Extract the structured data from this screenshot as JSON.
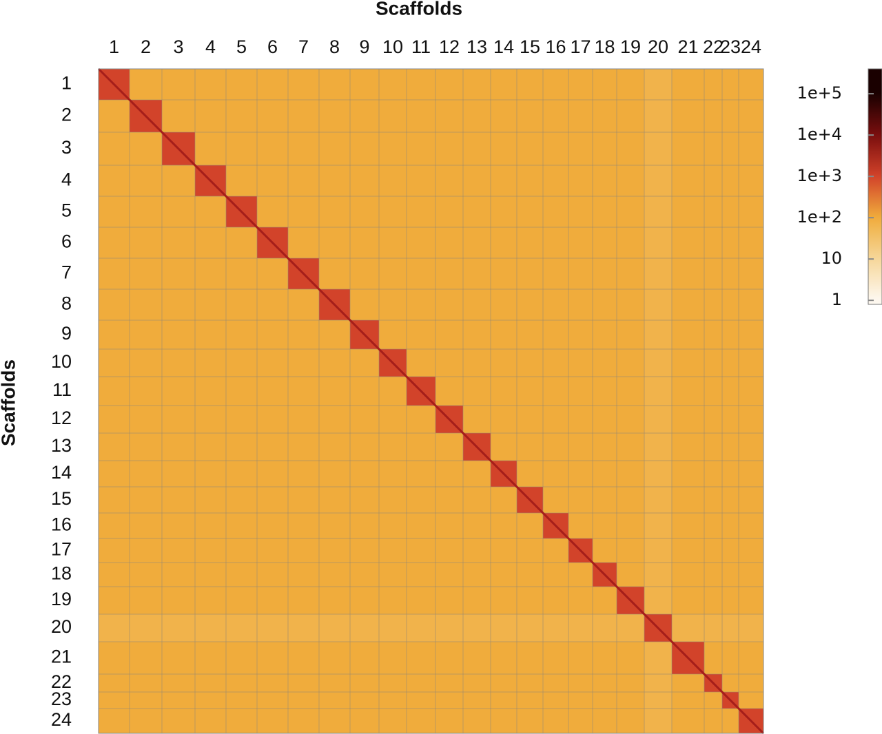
{
  "chart_data": {
    "type": "heatmap",
    "x_label": "Scaffolds",
    "y_label": "Scaffolds",
    "categories": [
      "1",
      "2",
      "3",
      "4",
      "5",
      "6",
      "7",
      "8",
      "9",
      "10",
      "11",
      "12",
      "13",
      "14",
      "15",
      "16",
      "17",
      "18",
      "19",
      "20",
      "21",
      "22",
      "23",
      "24"
    ],
    "lengths": [
      45,
      47,
      48,
      45,
      45,
      45,
      45,
      45,
      42,
      40,
      42,
      40,
      40,
      38,
      38,
      37,
      35,
      35,
      40,
      40,
      47,
      26,
      24,
      36
    ],
    "values": [
      [
        1000,
        100,
        100,
        100,
        100,
        100,
        100,
        100,
        100,
        100,
        100,
        100,
        100,
        100,
        100,
        100,
        100,
        100,
        100,
        70,
        100,
        100,
        100,
        100
      ],
      [
        100,
        1000,
        100,
        100,
        100,
        100,
        100,
        100,
        100,
        100,
        100,
        100,
        100,
        100,
        100,
        100,
        100,
        100,
        100,
        70,
        100,
        100,
        100,
        100
      ],
      [
        100,
        100,
        1000,
        100,
        100,
        100,
        100,
        100,
        100,
        100,
        100,
        100,
        100,
        100,
        100,
        100,
        100,
        100,
        100,
        70,
        100,
        100,
        100,
        100
      ],
      [
        100,
        100,
        100,
        1000,
        100,
        100,
        100,
        100,
        100,
        100,
        100,
        100,
        100,
        100,
        100,
        100,
        100,
        100,
        100,
        70,
        100,
        100,
        100,
        100
      ],
      [
        100,
        100,
        100,
        100,
        1000,
        100,
        100,
        100,
        100,
        100,
        100,
        100,
        100,
        100,
        100,
        100,
        100,
        100,
        100,
        70,
        100,
        100,
        100,
        100
      ],
      [
        100,
        100,
        100,
        100,
        100,
        1000,
        100,
        100,
        100,
        100,
        100,
        100,
        100,
        100,
        100,
        100,
        100,
        100,
        100,
        70,
        100,
        100,
        100,
        100
      ],
      [
        100,
        100,
        100,
        100,
        100,
        100,
        1000,
        100,
        100,
        100,
        100,
        100,
        100,
        100,
        100,
        100,
        100,
        100,
        100,
        70,
        100,
        100,
        100,
        100
      ],
      [
        100,
        100,
        100,
        100,
        100,
        100,
        100,
        1000,
        100,
        100,
        100,
        100,
        100,
        100,
        100,
        100,
        100,
        100,
        100,
        70,
        100,
        100,
        100,
        100
      ],
      [
        100,
        100,
        100,
        100,
        100,
        100,
        100,
        100,
        1000,
        100,
        100,
        100,
        100,
        100,
        100,
        100,
        100,
        100,
        100,
        70,
        100,
        100,
        100,
        100
      ],
      [
        100,
        100,
        100,
        100,
        100,
        100,
        100,
        100,
        100,
        1000,
        100,
        100,
        100,
        100,
        100,
        100,
        100,
        100,
        100,
        70,
        100,
        100,
        100,
        100
      ],
      [
        100,
        100,
        100,
        100,
        100,
        100,
        100,
        100,
        100,
        100,
        1000,
        100,
        100,
        100,
        100,
        100,
        100,
        100,
        100,
        70,
        100,
        100,
        100,
        100
      ],
      [
        100,
        100,
        100,
        100,
        100,
        100,
        100,
        100,
        100,
        100,
        100,
        1000,
        100,
        100,
        100,
        100,
        100,
        100,
        100,
        70,
        100,
        100,
        100,
        100
      ],
      [
        100,
        100,
        100,
        100,
        100,
        100,
        100,
        100,
        100,
        100,
        100,
        100,
        1000,
        100,
        100,
        100,
        100,
        100,
        100,
        70,
        100,
        100,
        100,
        100
      ],
      [
        100,
        100,
        100,
        100,
        100,
        100,
        100,
        100,
        100,
        100,
        100,
        100,
        100,
        1000,
        100,
        100,
        100,
        100,
        100,
        70,
        100,
        100,
        100,
        100
      ],
      [
        100,
        100,
        100,
        100,
        100,
        100,
        100,
        100,
        100,
        100,
        100,
        100,
        100,
        100,
        1000,
        100,
        100,
        100,
        100,
        70,
        100,
        100,
        100,
        100
      ],
      [
        100,
        100,
        100,
        100,
        100,
        100,
        100,
        100,
        100,
        100,
        100,
        100,
        100,
        100,
        100,
        1000,
        100,
        100,
        100,
        70,
        100,
        100,
        100,
        100
      ],
      [
        100,
        100,
        100,
        100,
        100,
        100,
        100,
        100,
        100,
        100,
        100,
        100,
        100,
        100,
        100,
        100,
        1000,
        100,
        100,
        70,
        100,
        100,
        100,
        100
      ],
      [
        100,
        100,
        100,
        100,
        100,
        100,
        100,
        100,
        100,
        100,
        100,
        100,
        100,
        100,
        100,
        100,
        100,
        1000,
        100,
        70,
        100,
        100,
        100,
        100
      ],
      [
        100,
        100,
        100,
        100,
        100,
        100,
        100,
        100,
        100,
        100,
        100,
        100,
        100,
        100,
        100,
        100,
        100,
        100,
        1000,
        70,
        100,
        100,
        100,
        100
      ],
      [
        70,
        70,
        70,
        70,
        70,
        70,
        70,
        70,
        70,
        70,
        70,
        70,
        70,
        70,
        70,
        70,
        70,
        70,
        70,
        1000,
        70,
        70,
        70,
        70
      ],
      [
        100,
        100,
        100,
        100,
        100,
        100,
        100,
        100,
        100,
        100,
        100,
        100,
        100,
        100,
        100,
        100,
        100,
        100,
        100,
        70,
        1000,
        100,
        100,
        100
      ],
      [
        100,
        100,
        100,
        100,
        100,
        100,
        100,
        100,
        100,
        100,
        100,
        100,
        100,
        100,
        100,
        100,
        100,
        100,
        100,
        70,
        100,
        1000,
        100,
        100
      ],
      [
        100,
        100,
        100,
        100,
        100,
        100,
        100,
        100,
        100,
        100,
        100,
        100,
        100,
        100,
        100,
        100,
        100,
        100,
        100,
        70,
        100,
        100,
        1000,
        100
      ],
      [
        100,
        100,
        100,
        100,
        100,
        100,
        100,
        100,
        100,
        100,
        100,
        100,
        100,
        100,
        100,
        100,
        100,
        100,
        100,
        70,
        100,
        100,
        100,
        1000
      ]
    ],
    "log_scale": true,
    "colorscale": [
      "#fdf8f0",
      "#f6d79a",
      "#f0ac3c",
      "#d2432a",
      "#7a0e0e",
      "#1a0000"
    ],
    "clim": [
      0.8,
      400000
    ],
    "cticks": [
      1,
      10,
      {
        "value": 100,
        "label": "1e+2"
      },
      {
        "value": 1000,
        "label": "1e+3"
      },
      {
        "value": 10000,
        "label": "1e+4"
      },
      {
        "value": 100000,
        "label": "1e+5"
      }
    ]
  }
}
